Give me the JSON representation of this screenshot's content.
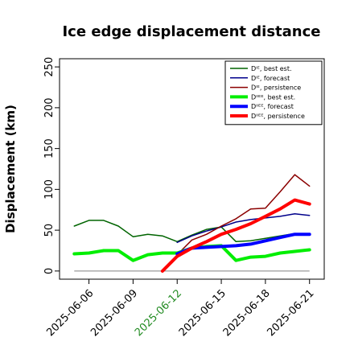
{
  "chart_data": {
    "type": "line",
    "title": "Ice edge displacement distance",
    "ylabel": "Displacement (km)",
    "xlabel": "",
    "ylim": [
      0,
      250
    ],
    "yticks": [
      0,
      50,
      100,
      150,
      200,
      250
    ],
    "xlim": [
      "2025-06-04",
      "2025-06-22"
    ],
    "xticks": [
      "2025-06-06",
      "2025-06-09",
      "2025-06-12",
      "2025-06-15",
      "2025-06-18",
      "2025-06-21"
    ],
    "xtick_colors": [
      "#000000",
      "#000000",
      "#228b22",
      "#000000",
      "#000000",
      "#000000"
    ],
    "grid": false,
    "legend_position": "top-right",
    "x": [
      "2025-06-05",
      "2025-06-06",
      "2025-06-07",
      "2025-06-08",
      "2025-06-09",
      "2025-06-10",
      "2025-06-11",
      "2025-06-12",
      "2025-06-13",
      "2025-06-14",
      "2025-06-15",
      "2025-06-16",
      "2025-06-17",
      "2025-06-18",
      "2025-06-19",
      "2025-06-20",
      "2025-06-21"
    ],
    "series": [
      {
        "name": "Dᴵᴱ, best est.",
        "color": "#006400",
        "width": 1.5,
        "values": [
          55,
          62,
          62,
          55,
          42,
          45,
          43,
          36,
          44,
          51,
          54,
          36,
          37,
          40,
          43,
          46,
          46
        ]
      },
      {
        "name": "Dᴵᴱ, forecast",
        "color": "#00008b",
        "width": 1.5,
        "values": [
          null,
          null,
          null,
          null,
          null,
          null,
          null,
          35,
          43,
          49,
          54,
          60,
          63,
          65,
          67,
          70,
          68
        ]
      },
      {
        "name": "Dᴵᴱ, persistence",
        "color": "#8b0000",
        "width": 1.5,
        "values": [
          null,
          null,
          null,
          null,
          null,
          null,
          null,
          20,
          38,
          45,
          55,
          64,
          76,
          77,
          97,
          118,
          104
        ]
      },
      {
        "name": "Dᴵᴵᴱᴱ, best est.",
        "color": "#00ee00",
        "width": 4,
        "values": [
          21,
          22,
          25,
          25,
          13,
          20,
          22,
          22,
          28,
          30,
          31,
          13,
          17,
          18,
          22,
          24,
          26
        ]
      },
      {
        "name": "Dᴵᴵᴱᴱ, forecast",
        "color": "#0000ff",
        "width": 4,
        "values": [
          null,
          null,
          null,
          null,
          null,
          null,
          null,
          21,
          28,
          29,
          30,
          31,
          33,
          37,
          41,
          45,
          45
        ]
      },
      {
        "name": "Dᴵᴵᴱᴱ, persistence",
        "color": "#ff0000",
        "width": 4,
        "values": [
          null,
          null,
          null,
          null,
          null,
          null,
          0,
          18,
          28,
          36,
          45,
          51,
          58,
          67,
          76,
          87,
          82
        ]
      }
    ],
    "reference_line": {
      "value": 0,
      "from": "2025-06-05",
      "to": "2025-06-21",
      "color": "#808080"
    }
  }
}
